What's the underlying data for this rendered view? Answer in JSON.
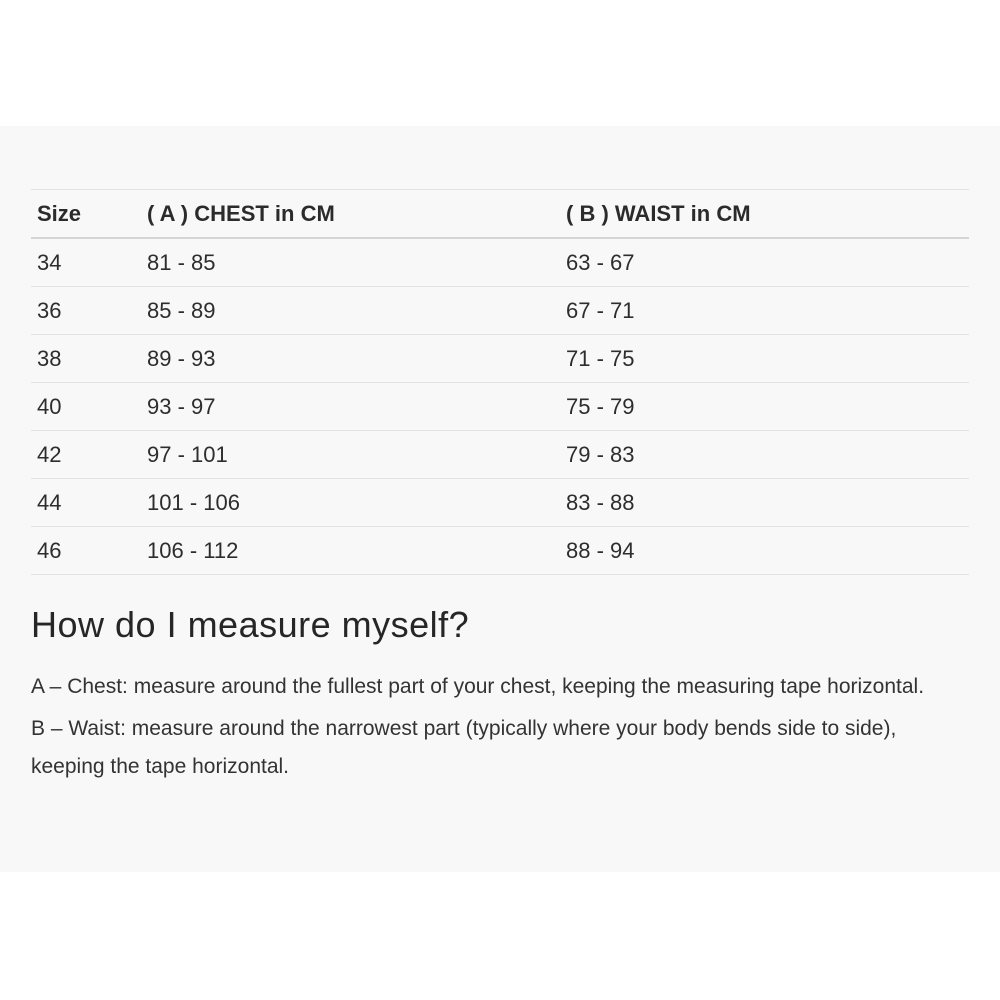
{
  "size_chart": {
    "columns": [
      "Size",
      "( A ) CHEST in CM",
      "( B ) WAIST in CM"
    ],
    "rows": [
      [
        "34",
        "81 - 85",
        "63 - 67"
      ],
      [
        "36",
        "85 - 89",
        "67 - 71"
      ],
      [
        "38",
        "89 - 93",
        "71 - 75"
      ],
      [
        "40",
        "93 - 97",
        "75 - 79"
      ],
      [
        "42",
        "97 - 101",
        "79 - 83"
      ],
      [
        "44",
        "101 - 106",
        "83 - 88"
      ],
      [
        "46",
        "106 - 112",
        "88 - 94"
      ]
    ]
  },
  "measure_section": {
    "heading": "How do I measure myself?",
    "paragraphs": [
      "A – Chest: measure around the fullest part of your chest, keeping the measuring tape horizontal.",
      "B – Waist: measure around the narrowest part (typically where your body bends side to side), keeping the tape horizontal."
    ]
  },
  "colors": {
    "panel_background": "#f8f8f8",
    "page_background": "#ffffff",
    "table_text": "#2d2d2d",
    "body_text": "#333333",
    "row_divider": "#e3e3e3",
    "header_divider": "#d5d5d5"
  }
}
